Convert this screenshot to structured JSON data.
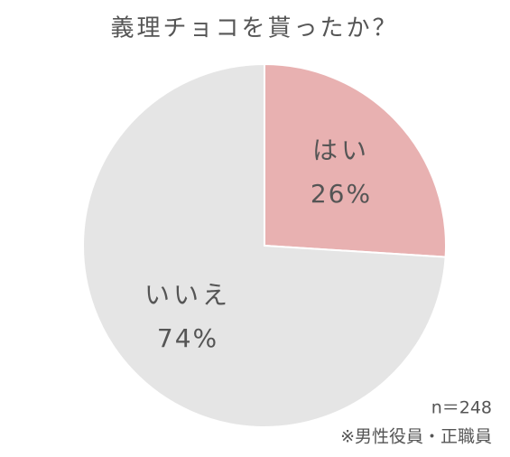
{
  "chart_data": {
    "type": "pie",
    "title": "義理チョコを貰ったか？",
    "categories": [
      "はい",
      "いいえ"
    ],
    "values": [
      26,
      74
    ],
    "value_labels": [
      "26%",
      "74%"
    ],
    "colors": [
      "#e8b1b1",
      "#e5e5e5"
    ]
  },
  "notes": [
    "n＝248",
    "※男性役員・正職員"
  ]
}
